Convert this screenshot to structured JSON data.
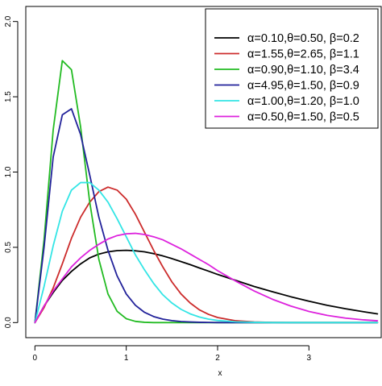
{
  "chart_data": {
    "type": "line",
    "title": "",
    "xlabel": "x",
    "ylabel": "",
    "xlim": [
      -0.1,
      3.8
    ],
    "ylim": [
      -0.1,
      2.1
    ],
    "x_ticks": [
      0,
      1,
      2,
      3
    ],
    "y_ticks": [
      0.0,
      0.5,
      1.0,
      1.5,
      2.0
    ],
    "x_tick_labels": [
      "0",
      "1",
      "2",
      "3"
    ],
    "y_tick_labels": [
      "0.0",
      "0.5",
      "1.0",
      "1.5",
      "2.0"
    ],
    "grid": false,
    "legend_position": "top-right",
    "x": [
      0,
      0.1,
      0.2,
      0.3,
      0.4,
      0.5,
      0.6,
      0.7,
      0.8,
      0.9,
      1.0,
      1.1,
      1.2,
      1.3,
      1.4,
      1.5,
      1.6,
      1.7,
      1.8,
      1.9,
      2.0,
      2.2,
      2.4,
      2.6,
      2.8,
      3.0,
      3.2,
      3.4,
      3.6,
      3.75
    ],
    "series": [
      {
        "name": "α=0.10,θ=0.50, β=0.2",
        "color": "#000000",
        "values": [
          0.0,
          0.11,
          0.2,
          0.28,
          0.34,
          0.39,
          0.43,
          0.455,
          0.47,
          0.478,
          0.48,
          0.477,
          0.47,
          0.458,
          0.443,
          0.425,
          0.405,
          0.385,
          0.363,
          0.342,
          0.32,
          0.28,
          0.24,
          0.205,
          0.172,
          0.142,
          0.115,
          0.092,
          0.072,
          0.058
        ]
      },
      {
        "name": "α=1.55,θ=2.65, β=1.1",
        "color": "#cc2b2b",
        "values": [
          0.0,
          0.1,
          0.23,
          0.39,
          0.56,
          0.7,
          0.8,
          0.87,
          0.9,
          0.88,
          0.82,
          0.72,
          0.6,
          0.48,
          0.37,
          0.27,
          0.19,
          0.13,
          0.085,
          0.055,
          0.034,
          0.012,
          0.004,
          0.001,
          0.0,
          0.0,
          0.0,
          0.0,
          0.0,
          0.0
        ]
      },
      {
        "name": "α=0.90,θ=1.10, β=3.4",
        "color": "#22bb22",
        "values": [
          0.0,
          0.55,
          1.28,
          1.74,
          1.68,
          1.3,
          0.8,
          0.42,
          0.19,
          0.075,
          0.026,
          0.008,
          0.002,
          0.0,
          0.0,
          0.0,
          0.0,
          0.0,
          0.0,
          0.0,
          0.0,
          0.0,
          0.0,
          0.0,
          0.0,
          0.0,
          0.0,
          0.0,
          0.0,
          0.0
        ]
      },
      {
        "name": "α=4.95,θ=1.50, β=0.9",
        "color": "#22229a",
        "values": [
          0.0,
          0.5,
          1.1,
          1.38,
          1.42,
          1.25,
          0.98,
          0.7,
          0.48,
          0.31,
          0.19,
          0.115,
          0.068,
          0.04,
          0.023,
          0.013,
          0.007,
          0.004,
          0.002,
          0.001,
          0.0,
          0.0,
          0.0,
          0.0,
          0.0,
          0.0,
          0.0,
          0.0,
          0.0,
          0.0
        ]
      },
      {
        "name": "α=1.00,θ=1.20, β=1.0",
        "color": "#33e5e5",
        "values": [
          0.0,
          0.24,
          0.51,
          0.74,
          0.88,
          0.93,
          0.93,
          0.88,
          0.8,
          0.69,
          0.57,
          0.45,
          0.35,
          0.26,
          0.185,
          0.13,
          0.088,
          0.058,
          0.037,
          0.023,
          0.014,
          0.005,
          0.002,
          0.0,
          0.0,
          0.0,
          0.0,
          0.0,
          0.0,
          0.0
        ]
      },
      {
        "name": "α=0.50,θ=1.50, β=0.5",
        "color": "#dd22dd",
        "values": [
          0.0,
          0.11,
          0.21,
          0.29,
          0.37,
          0.43,
          0.48,
          0.52,
          0.555,
          0.578,
          0.59,
          0.593,
          0.585,
          0.57,
          0.55,
          0.52,
          0.49,
          0.455,
          0.42,
          0.385,
          0.345,
          0.275,
          0.21,
          0.155,
          0.11,
          0.074,
          0.048,
          0.03,
          0.018,
          0.012
        ]
      }
    ]
  }
}
